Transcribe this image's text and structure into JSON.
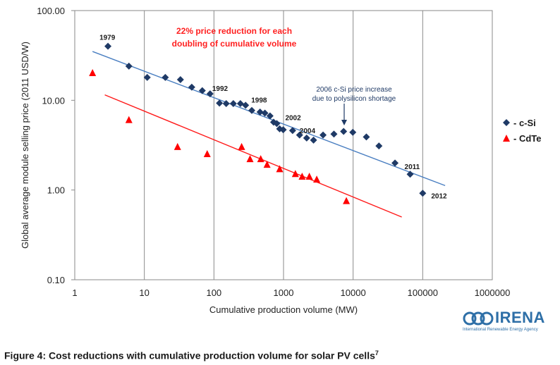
{
  "caption": {
    "text": "Figure 4: Cost reductions with cumulative production volume for solar PV cells",
    "footnote": "7"
  },
  "logo": {
    "name": "IRENA",
    "subtitle": "International Renewable Energy Agency"
  },
  "chart_data": {
    "type": "scatter",
    "xscale": "log",
    "yscale": "log",
    "xlim": [
      1,
      1000000
    ],
    "ylim": [
      0.1,
      100
    ],
    "grid": "vertical major",
    "legend_position": "right",
    "xlabel": "Cumulative production volume (MW)",
    "ylabel": "Global average module selling price (2011 USD/W)",
    "x_ticks": [
      "1",
      "10",
      "100",
      "1000",
      "10000",
      "100000",
      "1000000"
    ],
    "y_ticks": [
      "0.10",
      "1.00",
      "10.00",
      "100.00"
    ],
    "series": [
      {
        "name": "- c-Si",
        "marker": "diamond",
        "color": "#1f3a66",
        "points": [
          [
            3,
            40
          ],
          [
            6,
            24
          ],
          [
            11,
            18
          ],
          [
            20,
            18
          ],
          [
            33,
            17
          ],
          [
            48,
            14
          ],
          [
            68,
            12.8
          ],
          [
            88,
            11.8
          ],
          [
            120,
            9.3
          ],
          [
            150,
            9.2
          ],
          [
            190,
            9.2
          ],
          [
            240,
            9.2
          ],
          [
            285,
            8.8
          ],
          [
            350,
            7.7
          ],
          [
            460,
            7.4
          ],
          [
            540,
            7.2
          ],
          [
            640,
            6.7
          ],
          [
            720,
            5.7
          ],
          [
            800,
            5.5
          ],
          [
            880,
            4.8
          ],
          [
            990,
            4.7
          ],
          [
            1350,
            4.6
          ],
          [
            1700,
            4.1
          ],
          [
            2150,
            3.8
          ],
          [
            2700,
            3.6
          ],
          [
            3700,
            4.1
          ],
          [
            5300,
            4.2
          ],
          [
            7300,
            4.5
          ],
          [
            9900,
            4.4
          ],
          [
            15500,
            3.9
          ],
          [
            23500,
            3.1
          ],
          [
            40000,
            2.0
          ],
          [
            66000,
            1.5
          ],
          [
            100000,
            0.92
          ]
        ]
      },
      {
        "name": "- CdTe",
        "marker": "triangle",
        "color": "#ff0000",
        "points": [
          [
            1.8,
            20
          ],
          [
            6,
            6
          ],
          [
            30,
            3
          ],
          [
            80,
            2.5
          ],
          [
            250,
            3
          ],
          [
            330,
            2.2
          ],
          [
            470,
            2.2
          ],
          [
            580,
            1.9
          ],
          [
            880,
            1.7
          ],
          [
            1480,
            1.5
          ],
          [
            1850,
            1.4
          ],
          [
            2350,
            1.4
          ],
          [
            3000,
            1.3
          ],
          [
            8000,
            0.75
          ]
        ]
      }
    ],
    "trendlines": [
      {
        "series": "- c-Si",
        "color": "#4a7fc1",
        "from": [
          1.8,
          35
        ],
        "to": [
          210000,
          1.12
        ]
      },
      {
        "series": "- CdTe",
        "color": "#ff1a1a",
        "from": [
          2.7,
          11.5
        ],
        "to": [
          50000,
          0.5
        ]
      }
    ],
    "year_labels": [
      {
        "text": "1979",
        "x": 3,
        "y": 40
      },
      {
        "text": "1992",
        "x": 88,
        "y": 11.8
      },
      {
        "text": "1998",
        "x": 285,
        "y": 8.8
      },
      {
        "text": "2002",
        "x": 800,
        "y": 5.5
      },
      {
        "text": "2004",
        "x": 2150,
        "y": 3.8
      },
      {
        "text": "2011",
        "x": 66000,
        "y": 1.5
      },
      {
        "text": "2012",
        "x": 100000,
        "y": 0.92
      }
    ],
    "annotations": [
      {
        "lines": [
          "22% price reduction for each",
          "doubling of cumulative volume"
        ],
        "color": "#ff2020"
      },
      {
        "lines": [
          "2006 c-Si price increase",
          "due to polysilicon shortage"
        ],
        "color": "#1f3a66"
      }
    ]
  }
}
